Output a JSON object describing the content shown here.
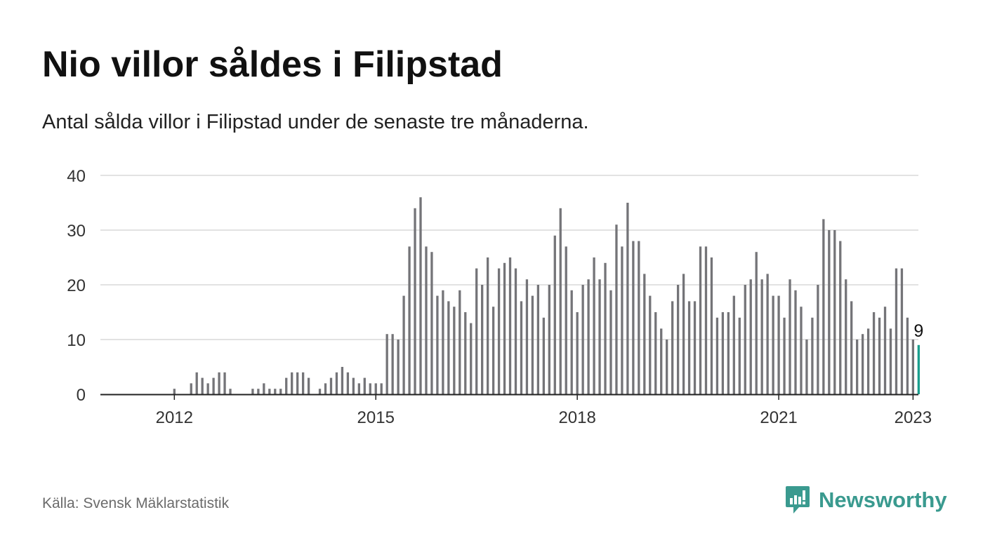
{
  "header": {
    "title": "Nio villor såldes i Filipstad",
    "subtitle": "Antal sålda villor i Filipstad under de senaste tre månaderna."
  },
  "footer": {
    "source": "Källa: Svensk Mäklarstatistik",
    "brand": "Newsworthy"
  },
  "colors": {
    "bar": "#747478",
    "highlight": "#1a9e8e",
    "grid": "#d9d9d9",
    "axis": "#222222",
    "brand": "#3a9a8f"
  },
  "chart_data": {
    "type": "bar",
    "x_start": "2011-07",
    "x_unit": "month",
    "ylim": [
      0,
      40
    ],
    "yticks": [
      0,
      10,
      20,
      30,
      40
    ],
    "xticks": [
      "2012",
      "2015",
      "2018",
      "2021",
      "2023"
    ],
    "grid": true,
    "values": [
      0,
      0,
      0,
      0,
      0,
      0,
      1,
      0,
      0,
      2,
      4,
      3,
      2,
      3,
      4,
      4,
      1,
      0,
      0,
      0,
      1,
      1,
      2,
      1,
      1,
      1,
      3,
      4,
      4,
      4,
      3,
      0,
      1,
      2,
      3,
      4,
      5,
      4,
      3,
      2,
      3,
      2,
      2,
      2,
      11,
      11,
      10,
      18,
      27,
      34,
      36,
      27,
      26,
      18,
      19,
      17,
      16,
      19,
      15,
      13,
      23,
      20,
      25,
      16,
      23,
      24,
      25,
      23,
      17,
      21,
      18,
      20,
      14,
      20,
      29,
      34,
      27,
      19,
      15,
      20,
      21,
      25,
      21,
      24,
      19,
      31,
      27,
      35,
      28,
      28,
      22,
      18,
      15,
      12,
      10,
      17,
      20,
      22,
      17,
      17,
      27,
      27,
      25,
      14,
      15,
      15,
      18,
      14,
      20,
      21,
      26,
      21,
      22,
      18,
      18,
      14,
      21,
      19,
      16,
      10,
      14,
      20,
      32,
      30,
      30,
      28,
      21,
      17,
      10,
      11,
      12,
      15,
      14,
      16,
      12,
      23,
      23,
      14,
      10,
      9
    ],
    "highlight_last": true,
    "last_label": "9"
  }
}
